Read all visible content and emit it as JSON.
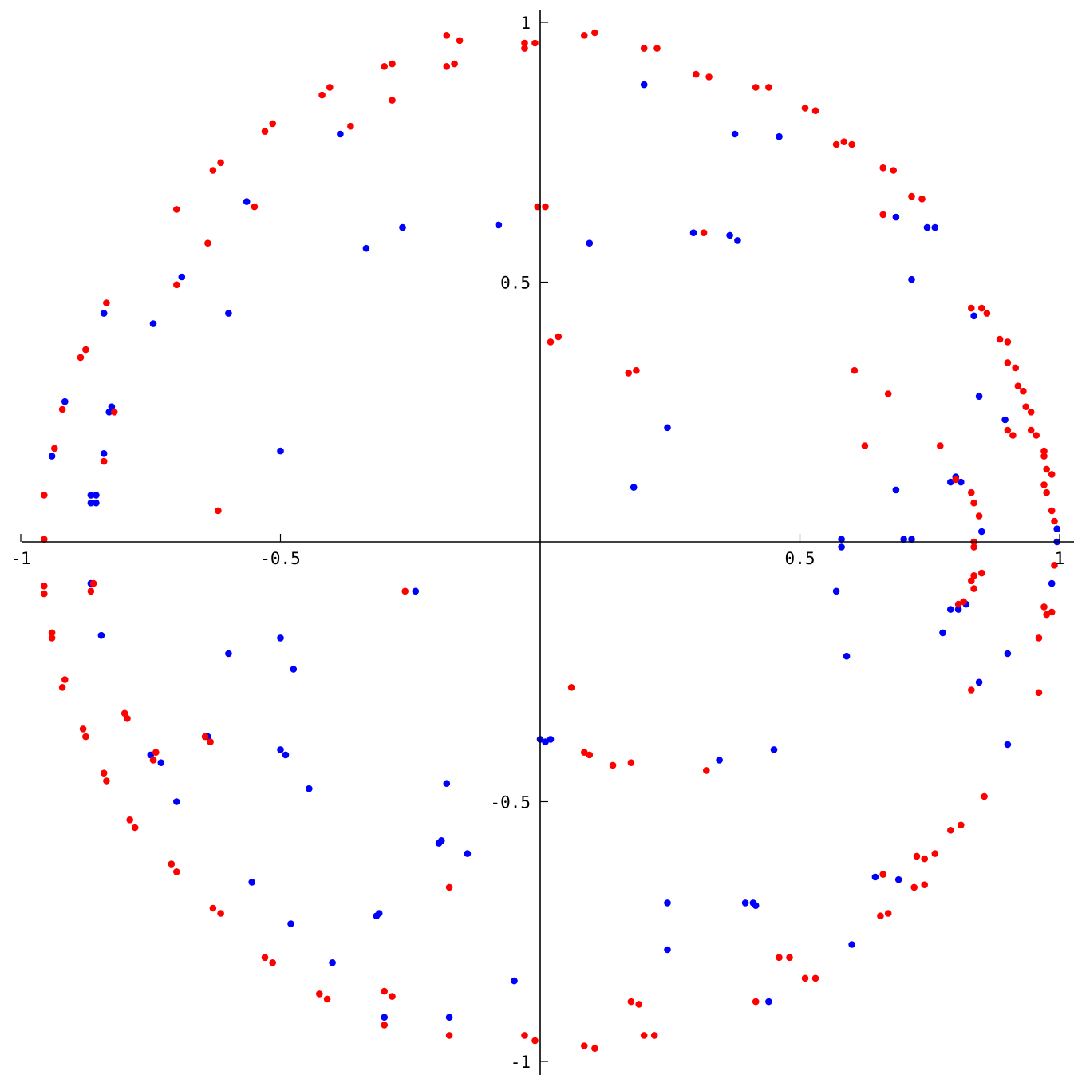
{
  "chart_data": {
    "type": "scatter",
    "title": "",
    "xlabel": "",
    "ylabel": "",
    "xlim": [
      -1,
      1.03
    ],
    "ylim": [
      -1.03,
      1.02
    ],
    "grid": false,
    "x_ticks": [
      {
        "value": -1,
        "label": "-1"
      },
      {
        "value": -0.5,
        "label": "-0.5"
      },
      {
        "value": 0.5,
        "label": "0.5"
      },
      {
        "value": 1,
        "label": "1"
      }
    ],
    "y_ticks": [
      {
        "value": 1,
        "label": "1"
      },
      {
        "value": 0.5,
        "label": "0.5"
      },
      {
        "value": -0.5,
        "label": "-0.5"
      },
      {
        "value": -1,
        "label": "-1"
      }
    ],
    "series": [
      {
        "color": "#0000ff",
        "points": [
          [
            0.2,
            0.88
          ],
          [
            0.375,
            0.785
          ],
          [
            0.46,
            0.78
          ],
          [
            -0.385,
            0.785
          ],
          [
            -0.565,
            0.655
          ],
          [
            -0.265,
            0.605
          ],
          [
            -0.335,
            0.565
          ],
          [
            -0.08,
            0.61
          ],
          [
            0.095,
            0.575
          ],
          [
            0.295,
            0.595
          ],
          [
            0.365,
            0.59
          ],
          [
            0.38,
            0.58
          ],
          [
            0.685,
            0.625
          ],
          [
            0.745,
            0.605
          ],
          [
            0.76,
            0.605
          ],
          [
            0.715,
            0.505
          ],
          [
            -0.69,
            0.51
          ],
          [
            -0.745,
            0.42
          ],
          [
            -0.6,
            0.44
          ],
          [
            -0.84,
            0.44
          ],
          [
            -0.915,
            0.27
          ],
          [
            -0.825,
            0.26
          ],
          [
            -0.83,
            0.25
          ],
          [
            -0.94,
            0.165
          ],
          [
            -0.84,
            0.17
          ],
          [
            -0.5,
            0.175
          ],
          [
            -0.865,
            0.09
          ],
          [
            -0.855,
            0.09
          ],
          [
            -0.865,
            0.075
          ],
          [
            -0.855,
            0.075
          ],
          [
            0.245,
            0.22
          ],
          [
            0.18,
            0.105
          ],
          [
            0.835,
            0.435
          ],
          [
            0.845,
            0.28
          ],
          [
            0.895,
            0.235
          ],
          [
            0.685,
            0.1
          ],
          [
            0.8,
            0.125
          ],
          [
            0.81,
            0.115
          ],
          [
            0.79,
            0.115
          ],
          [
            0.85,
            0.02
          ],
          [
            0.58,
            0.005
          ],
          [
            0.58,
            -0.01
          ],
          [
            0.7,
            0.005
          ],
          [
            0.715,
            0.005
          ],
          [
            0.995,
            0.025
          ],
          [
            0.995,
            0.0
          ],
          [
            -0.865,
            -0.08
          ],
          [
            -0.24,
            -0.095
          ],
          [
            0.57,
            -0.095
          ],
          [
            0.985,
            -0.08
          ],
          [
            0.82,
            -0.12
          ],
          [
            0.805,
            -0.13
          ],
          [
            0.79,
            -0.13
          ],
          [
            0.775,
            -0.175
          ],
          [
            0.59,
            -0.22
          ],
          [
            0.9,
            -0.215
          ],
          [
            0.845,
            -0.27
          ],
          [
            -0.845,
            -0.18
          ],
          [
            -0.5,
            -0.185
          ],
          [
            -0.6,
            -0.215
          ],
          [
            -0.475,
            -0.245
          ],
          [
            -0.64,
            -0.375
          ],
          [
            -0.5,
            -0.4
          ],
          [
            -0.49,
            -0.41
          ],
          [
            -0.75,
            -0.41
          ],
          [
            -0.73,
            -0.425
          ],
          [
            -0.445,
            -0.475
          ],
          [
            -0.7,
            -0.5
          ],
          [
            -0.18,
            -0.465
          ],
          [
            -0.19,
            -0.575
          ],
          [
            -0.195,
            -0.58
          ],
          [
            -0.14,
            -0.6
          ],
          [
            -0.555,
            -0.655
          ],
          [
            -0.31,
            -0.715
          ],
          [
            -0.315,
            -0.72
          ],
          [
            -0.48,
            -0.735
          ],
          [
            -0.4,
            -0.81
          ],
          [
            -0.05,
            -0.845
          ],
          [
            -0.3,
            -0.915
          ],
          [
            -0.175,
            -0.915
          ],
          [
            0.0,
            -0.38
          ],
          [
            0.01,
            -0.385
          ],
          [
            0.02,
            -0.38
          ],
          [
            0.345,
            -0.42
          ],
          [
            0.45,
            -0.4
          ],
          [
            0.9,
            -0.39
          ],
          [
            0.645,
            -0.645
          ],
          [
            0.69,
            -0.65
          ],
          [
            0.245,
            -0.695
          ],
          [
            0.395,
            -0.695
          ],
          [
            0.41,
            -0.695
          ],
          [
            0.415,
            -0.7
          ],
          [
            0.6,
            -0.775
          ],
          [
            0.245,
            -0.785
          ],
          [
            0.44,
            -0.885
          ]
        ]
      },
      {
        "color": "#ff0000",
        "points": [
          [
            -0.18,
            0.915
          ],
          [
            -0.165,
            0.92
          ],
          [
            -0.18,
            0.975
          ],
          [
            -0.155,
            0.965
          ],
          [
            -0.3,
            0.915
          ],
          [
            -0.285,
            0.92
          ],
          [
            -0.285,
            0.85
          ],
          [
            -0.42,
            0.86
          ],
          [
            -0.405,
            0.875
          ],
          [
            -0.53,
            0.79
          ],
          [
            -0.515,
            0.805
          ],
          [
            -0.63,
            0.715
          ],
          [
            -0.615,
            0.73
          ],
          [
            -0.7,
            0.64
          ],
          [
            -0.64,
            0.575
          ],
          [
            -0.7,
            0.495
          ],
          [
            -0.835,
            0.46
          ],
          [
            -0.885,
            0.355
          ],
          [
            -0.875,
            0.37
          ],
          [
            -0.365,
            0.8
          ],
          [
            -0.55,
            0.645
          ],
          [
            -0.92,
            0.255
          ],
          [
            -0.935,
            0.18
          ],
          [
            -0.82,
            0.25
          ],
          [
            -0.84,
            0.155
          ],
          [
            -0.955,
            0.09
          ],
          [
            -0.62,
            0.06
          ],
          [
            -0.955,
            0.005
          ],
          [
            -0.03,
            0.95
          ],
          [
            -0.03,
            0.96
          ],
          [
            -0.01,
            0.96
          ],
          [
            0.085,
            0.975
          ],
          [
            0.105,
            0.98
          ],
          [
            0.2,
            0.95
          ],
          [
            0.225,
            0.95
          ],
          [
            0.3,
            0.9
          ],
          [
            0.325,
            0.895
          ],
          [
            0.415,
            0.875
          ],
          [
            0.44,
            0.875
          ],
          [
            0.51,
            0.835
          ],
          [
            0.53,
            0.83
          ],
          [
            0.57,
            0.765
          ],
          [
            0.585,
            0.77
          ],
          [
            0.6,
            0.765
          ],
          [
            0.66,
            0.72
          ],
          [
            0.68,
            0.715
          ],
          [
            0.715,
            0.665
          ],
          [
            0.735,
            0.66
          ],
          [
            -0.005,
            0.645
          ],
          [
            0.01,
            0.645
          ],
          [
            0.315,
            0.595
          ],
          [
            0.66,
            0.63
          ],
          [
            0.02,
            0.385
          ],
          [
            0.035,
            0.395
          ],
          [
            0.17,
            0.325
          ],
          [
            0.185,
            0.33
          ],
          [
            0.605,
            0.33
          ],
          [
            0.67,
            0.285
          ],
          [
            0.625,
            0.185
          ],
          [
            0.83,
            0.45
          ],
          [
            0.85,
            0.45
          ],
          [
            0.86,
            0.44
          ],
          [
            0.885,
            0.39
          ],
          [
            0.9,
            0.385
          ],
          [
            0.9,
            0.345
          ],
          [
            0.915,
            0.335
          ],
          [
            0.92,
            0.3
          ],
          [
            0.93,
            0.29
          ],
          [
            0.935,
            0.26
          ],
          [
            0.945,
            0.25
          ],
          [
            0.9,
            0.215
          ],
          [
            0.91,
            0.205
          ],
          [
            0.945,
            0.215
          ],
          [
            0.955,
            0.205
          ],
          [
            0.97,
            0.175
          ],
          [
            0.97,
            0.165
          ],
          [
            0.77,
            0.185
          ],
          [
            0.8,
            0.12
          ],
          [
            0.83,
            0.095
          ],
          [
            0.845,
            0.05
          ],
          [
            0.835,
            0.075
          ],
          [
            0.975,
            0.14
          ],
          [
            0.985,
            0.13
          ],
          [
            0.97,
            0.11
          ],
          [
            0.975,
            0.095
          ],
          [
            0.985,
            0.06
          ],
          [
            0.99,
            0.04
          ],
          [
            0.835,
            0.0
          ],
          [
            0.835,
            -0.01
          ],
          [
            0.85,
            -0.06
          ],
          [
            0.835,
            -0.065
          ],
          [
            0.83,
            -0.075
          ],
          [
            0.835,
            -0.09
          ],
          [
            0.815,
            -0.115
          ],
          [
            0.805,
            -0.12
          ],
          [
            0.99,
            -0.045
          ],
          [
            0.97,
            -0.125
          ],
          [
            0.975,
            -0.14
          ],
          [
            0.985,
            -0.135
          ],
          [
            0.96,
            -0.185
          ],
          [
            0.96,
            -0.29
          ],
          [
            0.83,
            -0.285
          ],
          [
            -0.86,
            -0.08
          ],
          [
            -0.865,
            -0.095
          ],
          [
            -0.26,
            -0.095
          ],
          [
            -0.955,
            -0.085
          ],
          [
            -0.955,
            -0.1
          ],
          [
            -0.94,
            -0.175
          ],
          [
            -0.94,
            -0.185
          ],
          [
            -0.915,
            -0.265
          ],
          [
            -0.92,
            -0.28
          ],
          [
            -0.88,
            -0.36
          ],
          [
            -0.875,
            -0.375
          ],
          [
            -0.8,
            -0.33
          ],
          [
            -0.795,
            -0.34
          ],
          [
            -0.645,
            -0.375
          ],
          [
            -0.635,
            -0.385
          ],
          [
            -0.74,
            -0.405
          ],
          [
            -0.745,
            -0.42
          ],
          [
            -0.84,
            -0.445
          ],
          [
            -0.835,
            -0.46
          ],
          [
            -0.79,
            -0.535
          ],
          [
            -0.78,
            -0.55
          ],
          [
            -0.71,
            -0.62
          ],
          [
            -0.7,
            -0.635
          ],
          [
            -0.63,
            -0.705
          ],
          [
            -0.615,
            -0.715
          ],
          [
            -0.53,
            -0.8
          ],
          [
            -0.515,
            -0.81
          ],
          [
            -0.425,
            -0.87
          ],
          [
            -0.41,
            -0.88
          ],
          [
            -0.3,
            -0.865
          ],
          [
            -0.285,
            -0.875
          ],
          [
            -0.175,
            -0.665
          ],
          [
            -0.3,
            -0.93
          ],
          [
            -0.175,
            -0.95
          ],
          [
            -0.03,
            -0.95
          ],
          [
            -0.01,
            -0.96
          ],
          [
            0.06,
            -0.28
          ],
          [
            0.085,
            -0.405
          ],
          [
            0.095,
            -0.41
          ],
          [
            0.14,
            -0.43
          ],
          [
            0.175,
            -0.425
          ],
          [
            0.32,
            -0.44
          ],
          [
            0.085,
            -0.97
          ],
          [
            0.105,
            -0.975
          ],
          [
            0.175,
            -0.885
          ],
          [
            0.19,
            -0.89
          ],
          [
            0.2,
            -0.95
          ],
          [
            0.22,
            -0.95
          ],
          [
            0.415,
            -0.885
          ],
          [
            0.46,
            -0.8
          ],
          [
            0.48,
            -0.8
          ],
          [
            0.51,
            -0.84
          ],
          [
            0.53,
            -0.84
          ],
          [
            0.655,
            -0.72
          ],
          [
            0.67,
            -0.715
          ],
          [
            0.66,
            -0.64
          ],
          [
            0.72,
            -0.665
          ],
          [
            0.74,
            -0.66
          ],
          [
            0.725,
            -0.605
          ],
          [
            0.74,
            -0.61
          ],
          [
            0.76,
            -0.6
          ],
          [
            0.79,
            -0.555
          ],
          [
            0.81,
            -0.545
          ],
          [
            0.855,
            -0.49
          ]
        ]
      }
    ]
  }
}
